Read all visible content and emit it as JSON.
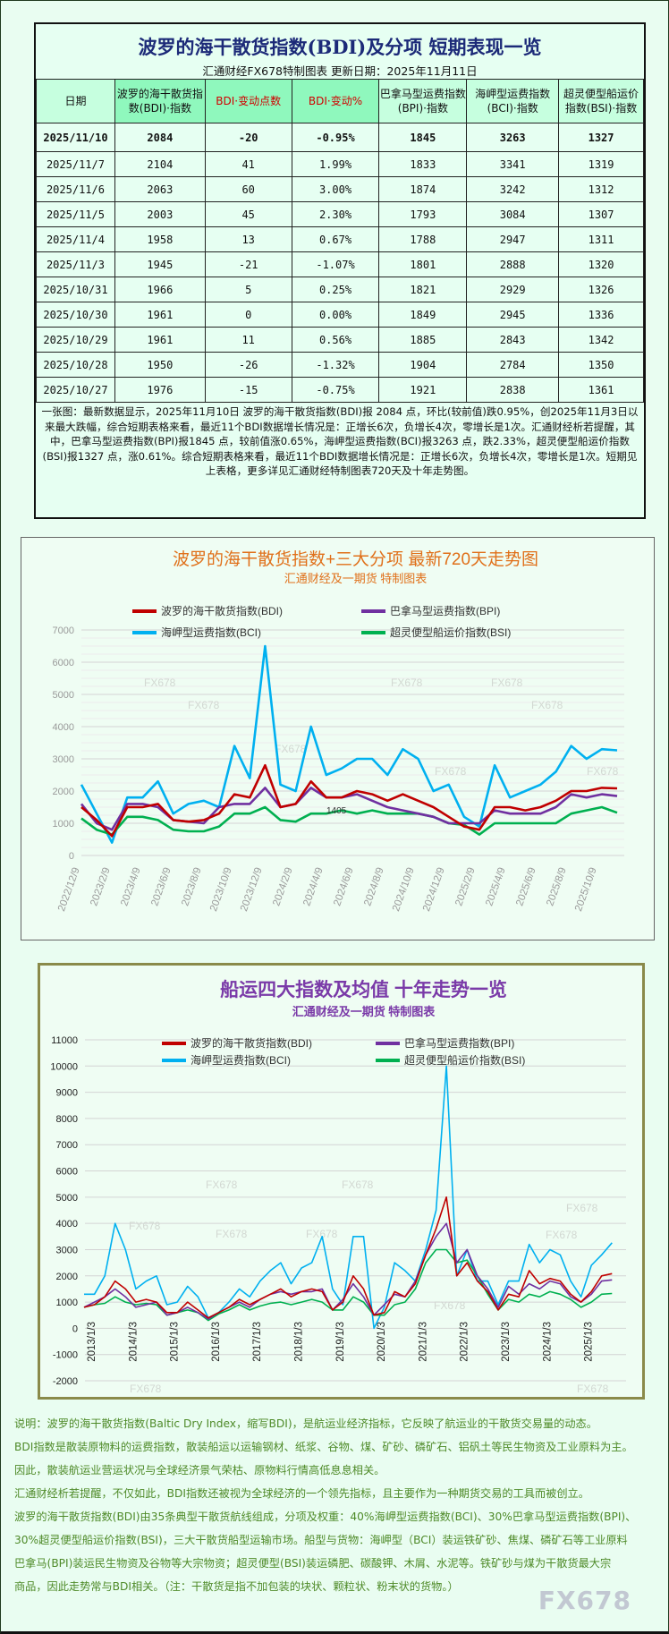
{
  "table": {
    "title": "波罗的海干散货指数(BDI)及分项 短期表现一览",
    "subtitle": "汇通财经FX678特制图表     更新日期：2025年11月11日",
    "headers": [
      "日期",
      "波罗的海干散货指数(BDI)·指数",
      "BDI·变动点数",
      "BDI·变动%",
      "巴拿马型运费指数(BPI)·指数",
      "海岬型运费指数(BCI)·指数",
      "超灵便型船运价指数(BSI)·指数"
    ],
    "rows": [
      [
        "2025/11/10",
        "2084",
        "-20",
        "-0.95%",
        "1845",
        "3263",
        "1327"
      ],
      [
        "2025/11/7",
        "2104",
        "41",
        "1.99%",
        "1833",
        "3341",
        "1319"
      ],
      [
        "2025/11/6",
        "2063",
        "60",
        "3.00%",
        "1874",
        "3242",
        "1312"
      ],
      [
        "2025/11/5",
        "2003",
        "45",
        "2.30%",
        "1793",
        "3084",
        "1307"
      ],
      [
        "2025/11/4",
        "1958",
        "13",
        "0.67%",
        "1788",
        "2947",
        "1311"
      ],
      [
        "2025/11/3",
        "1945",
        "-21",
        "-1.07%",
        "1801",
        "2888",
        "1320"
      ],
      [
        "2025/10/31",
        "1966",
        "5",
        "0.25%",
        "1821",
        "2929",
        "1326"
      ],
      [
        "2025/10/30",
        "1961",
        "0",
        "0.00%",
        "1849",
        "2945",
        "1336"
      ],
      [
        "2025/10/29",
        "1961",
        "11",
        "0.56%",
        "1885",
        "2843",
        "1342"
      ],
      [
        "2025/10/28",
        "1950",
        "-26",
        "-1.32%",
        "1904",
        "2784",
        "1350"
      ],
      [
        "2025/10/27",
        "1976",
        "-15",
        "-0.75%",
        "1921",
        "2838",
        "1361"
      ]
    ],
    "summary": "一张图：最新数据显示，2025年11月10日 波罗的海干散货指数(BDI)报 2084 点，环比(较前值)跌0.95%，创2025年11月3日以来最大跌幅，综合短期表格来看，最近11个BDI数据增长情况是：正增长6次，负增长4次，零增长是1次。汇通财经析若提醒，其中，巴拿马型运费指数(BPI)报1845 点，较前值涨0.65%，海岬型运费指数(BCI)报3263 点，跌2.33%，超灵便型船运价指数(BSI)报1327 点，涨0.61%。综合短期表格来看，最近11个BDI数据增长情况是：正增长6次，负增长4次，零增长是1次。短期见上表格，更多详见汇通财经特制图表720天及十年走势图。"
  },
  "chart_data": [
    {
      "type": "line",
      "title": "波罗的海干散货指数+三大分项  最新720天走势图",
      "subtitle": "汇通财经及一期货  特制图表",
      "title_color": "#e0701a",
      "xlabel": "",
      "ylabel": "",
      "ylim": [
        0,
        7000
      ],
      "yticks": [
        "0",
        "1000",
        "2000",
        "3000",
        "4000",
        "5000",
        "6000",
        "7000"
      ],
      "xticks": [
        "2022/12/9",
        "2023/2/9",
        "2023/4/9",
        "2023/6/9",
        "2023/8/9",
        "2023/10/9",
        "2023/12/9",
        "2024/2/9",
        "2024/4/9",
        "2024/6/9",
        "2024/8/9",
        "2024/10/9",
        "2024/12/9",
        "2025/2/9",
        "2025/4/9",
        "2025/6/9",
        "2025/8/9",
        "2025/10/9"
      ],
      "x": [
        "2022/12",
        "2023/1",
        "2023/2",
        "2023/3",
        "2023/4",
        "2023/5",
        "2023/6",
        "2023/7",
        "2023/8",
        "2023/9",
        "2023/10",
        "2023/11",
        "2023/12",
        "2024/1",
        "2024/2",
        "2024/3",
        "2024/4",
        "2024/5",
        "2024/6",
        "2024/7",
        "2024/8",
        "2024/9",
        "2024/10",
        "2024/11",
        "2024/12",
        "2025/1",
        "2025/2",
        "2025/3",
        "2025/4",
        "2025/5",
        "2025/6",
        "2025/7",
        "2025/8",
        "2025/9",
        "2025/10",
        "2025/11"
      ],
      "grid": true,
      "legend": "top",
      "annotation": "1405",
      "series": [
        {
          "name": "波罗的海干散货指数(BDI)",
          "color": "#c00000",
          "values": [
            1500,
            1100,
            600,
            1500,
            1500,
            1600,
            1100,
            1050,
            1100,
            1300,
            1900,
            1800,
            2800,
            1500,
            1600,
            2300,
            1800,
            1800,
            2000,
            1900,
            1700,
            1900,
            1700,
            1500,
            1200,
            900,
            800,
            1500,
            1500,
            1400,
            1500,
            1700,
            2000,
            2000,
            2100,
            2084
          ]
        },
        {
          "name": "巴拿马型运费指数(BPI)",
          "color": "#7030a0",
          "values": [
            1600,
            1000,
            800,
            1600,
            1600,
            1500,
            1100,
            1050,
            1000,
            1500,
            1600,
            1600,
            2100,
            1500,
            1600,
            2100,
            1800,
            1800,
            1900,
            1700,
            1500,
            1400,
            1300,
            1200,
            1000,
            1000,
            1000,
            1400,
            1300,
            1300,
            1300,
            1500,
            1900,
            1800,
            1900,
            1845
          ]
        },
        {
          "name": "海岬型运费指数(BCI)",
          "color": "#00b0f0",
          "values": [
            2200,
            1300,
            400,
            1800,
            1800,
            2300,
            1300,
            1600,
            1700,
            1500,
            3400,
            2400,
            6500,
            2200,
            2000,
            4000,
            2500,
            2700,
            3000,
            3000,
            2500,
            3300,
            3000,
            2000,
            2200,
            1200,
            900,
            2800,
            1800,
            2000,
            2200,
            2600,
            3400,
            3000,
            3300,
            3263
          ]
        },
        {
          "name": "超灵便型船运价指数(BSI)",
          "color": "#00b050",
          "values": [
            1150,
            800,
            650,
            1200,
            1200,
            1100,
            800,
            750,
            750,
            900,
            1300,
            1300,
            1500,
            1100,
            1050,
            1300,
            1300,
            1400,
            1300,
            1400,
            1300,
            1300,
            1300,
            1200,
            1000,
            950,
            650,
            1000,
            1000,
            1000,
            1000,
            1000,
            1300,
            1400,
            1500,
            1327
          ]
        }
      ]
    },
    {
      "type": "line",
      "title": "船运四大指数及均值 十年走势一览",
      "subtitle": "汇通财经及一期货 特制图表",
      "title_color": "#7a3aa8",
      "xlabel": "",
      "ylabel": "",
      "ylim": [
        -2000,
        11000
      ],
      "yticks": [
        "-2000",
        "-1000",
        "0",
        "1000",
        "2000",
        "3000",
        "4000",
        "5000",
        "6000",
        "7000",
        "8000",
        "9000",
        "10000",
        "11000"
      ],
      "xticks": [
        "2013/1/3",
        "2014/1/3",
        "2015/1/3",
        "2016/1/3",
        "2017/1/3",
        "2018/1/3",
        "2019/1/3",
        "2020/1/3",
        "2021/1/3",
        "2022/1/3",
        "2023/1/3",
        "2024/1/3",
        "2025/1/3"
      ],
      "x_quarters_from": "2013/1",
      "grid": true,
      "legend": "top",
      "series": [
        {
          "name": "波罗的海干散货指数(BDI)",
          "color": "#c00000",
          "values": [
            800,
            900,
            1200,
            1800,
            1500,
            1000,
            1100,
            1000,
            600,
            600,
            1000,
            700,
            400,
            600,
            800,
            1100,
            900,
            1100,
            1300,
            1500,
            1200,
            1400,
            1500,
            1400,
            700,
            1000,
            2000,
            1500,
            500,
            600,
            1400,
            1200,
            1700,
            2800,
            3800,
            5000,
            2000,
            2500,
            1800,
            1400,
            700,
            1300,
            1200,
            2200,
            1700,
            1900,
            1800,
            1300,
            1000,
            1400,
            2000,
            2084
          ]
        },
        {
          "name": "巴拿马型运费指数(BPI)",
          "color": "#7030a0",
          "values": [
            800,
            1000,
            1200,
            1500,
            1200,
            800,
            900,
            1000,
            500,
            600,
            800,
            600,
            350,
            600,
            800,
            1000,
            800,
            1100,
            1300,
            1400,
            1300,
            1400,
            1400,
            1500,
            700,
            1100,
            1700,
            1200,
            500,
            900,
            1300,
            1200,
            1800,
            2800,
            3500,
            4000,
            2500,
            3000,
            2000,
            1500,
            800,
            1600,
            1300,
            1700,
            1500,
            1800,
            1700,
            1200,
            1000,
            1300,
            1800,
            1845
          ]
        },
        {
          "name": "海岬型运费指数(BCI)",
          "color": "#00b0f0",
          "values": [
            1300,
            1300,
            2000,
            4000,
            3000,
            1500,
            1800,
            2000,
            900,
            1000,
            1600,
            1200,
            400,
            600,
            1000,
            1500,
            1200,
            1800,
            2200,
            2500,
            1700,
            2300,
            2500,
            3500,
            1500,
            900,
            3500,
            3500,
            0,
            800,
            2500,
            2200,
            1800,
            3000,
            4500,
            10000,
            2000,
            3000,
            1800,
            1800,
            900,
            1800,
            1800,
            3200,
            2500,
            3000,
            2800,
            1800,
            1200,
            2400,
            2800,
            3263
          ]
        },
        {
          "name": "超灵便型船运价指数(BSI)",
          "color": "#00b050",
          "values": [
            800,
            900,
            950,
            1200,
            1000,
            900,
            950,
            900,
            500,
            600,
            700,
            600,
            300,
            550,
            700,
            900,
            700,
            850,
            950,
            1000,
            900,
            1000,
            1100,
            1000,
            700,
            700,
            1200,
            1000,
            500,
            500,
            900,
            1000,
            1500,
            2500,
            3000,
            3000,
            2500,
            2600,
            2000,
            1300,
            700,
            1100,
            1000,
            1300,
            1200,
            1400,
            1300,
            1100,
            800,
            1000,
            1300,
            1327
          ]
        }
      ]
    }
  ],
  "notes": [
    "说明：波罗的海干散货指数(Baltic Dry Index，缩写BDI)，是航运业经济指标，它反映了航运业的干散货交易量的动态。",
    "BDI指数是散装原物料的运费指数，散装船运以运输钢材、纸浆、谷物、煤、矿砂、磷矿石、铝矾土等民生物资及工业原料为主。",
    "因此，散装航运业营运状况与全球经济景气荣枯、原物料行情高低息息相关。",
    "汇通财经析若提醒，不仅如此，BDI指数还被视为全球经济的一个领先指标，且主要作为一种期货交易的工具而被创立。",
    "波罗的海干散货指数(BDI)由35条典型干散货航线组成，分项及权重：40%海岬型运费指数(BCI)、30%巴拿马型运费指数(BPI)、",
    "30%超灵便型船运价指数(BSI)，三大干散货船型运输市场。船型与货物：海岬型（BCI）装运铁矿砂、焦煤、磷矿石等工业原料",
    "巴拿马(BPI)装运民生物资及谷物等大宗物资；超灵便型(BSI)装运磷肥、碳酸钾、木屑、水泥等。铁矿砂与煤为干散货最大宗",
    "商品，因此走势常与BDI相关。（注：干散货是指不加包装的块状、颗粒状、粉末状的货物。）"
  ],
  "watermark": "FX678"
}
